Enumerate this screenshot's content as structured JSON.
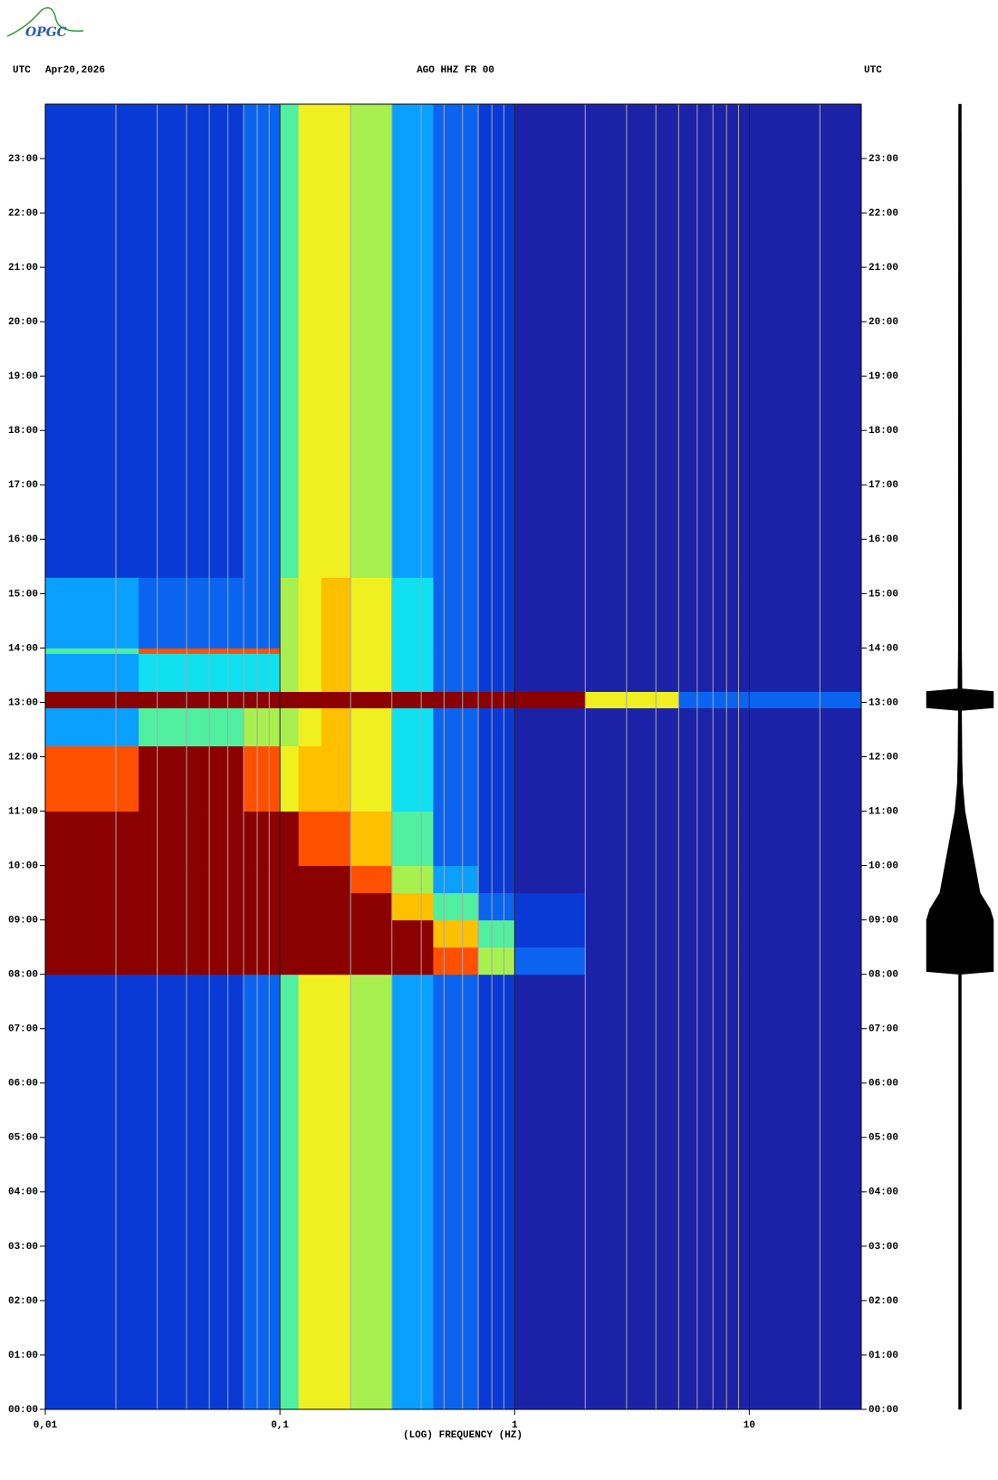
{
  "logo": "OPGC",
  "chart_data": {
    "type": "spectrogram",
    "header_left_zone": "UTC",
    "header_date": "Apr20,2026",
    "title": "AGO HHZ FR 00",
    "header_right_zone": "UTC",
    "x_label": "(LOG) FREQUENCY (HZ)",
    "x_log": true,
    "xlim": [
      0.01,
      30
    ],
    "xticks": [
      {
        "value": 0.01,
        "label": "0,01"
      },
      {
        "value": 0.1,
        "label": "0,1"
      },
      1,
      10
    ],
    "xminor": [
      0.02,
      0.03,
      0.04,
      0.05,
      0.06,
      0.07,
      0.08,
      0.09,
      0.2,
      0.3,
      0.4,
      0.5,
      0.6,
      0.7,
      0.8,
      0.9,
      2,
      3,
      4,
      5,
      6,
      7,
      8,
      9,
      20
    ],
    "ylim": [
      0,
      24
    ],
    "yticks": [
      {
        "value": 0,
        "label": "00:00"
      },
      {
        "value": 1,
        "label": "01:00"
      },
      {
        "value": 2,
        "label": "02:00"
      },
      {
        "value": 3,
        "label": "03:00"
      },
      {
        "value": 4,
        "label": "04:00"
      },
      {
        "value": 5,
        "label": "05:00"
      },
      {
        "value": 6,
        "label": "06:00"
      },
      {
        "value": 7,
        "label": "07:00"
      },
      {
        "value": 8,
        "label": "08:00"
      },
      {
        "value": 9,
        "label": "09:00"
      },
      {
        "value": 10,
        "label": "10:00"
      },
      {
        "value": 11,
        "label": "11:00"
      },
      {
        "value": 12,
        "label": "12:00"
      },
      {
        "value": 13,
        "label": "13:00"
      },
      {
        "value": 14,
        "label": "14:00"
      },
      {
        "value": 15,
        "label": "15:00"
      },
      {
        "value": 16,
        "label": "16:00"
      },
      {
        "value": 17,
        "label": "17:00"
      },
      {
        "value": 18,
        "label": "18:00"
      },
      {
        "value": 19,
        "label": "19:00"
      },
      {
        "value": 20,
        "label": "20:00"
      },
      {
        "value": 21,
        "label": "21:00"
      },
      {
        "value": 22,
        "label": "22:00"
      },
      {
        "value": 23,
        "label": "23:00"
      }
    ],
    "colors": [
      "#1c22a8",
      "#0a3ad6",
      "#0a64f0",
      "#0aa0ff",
      "#10e0f0",
      "#50f0a0",
      "#a8f050",
      "#f0f020",
      "#ffc000",
      "#ff5000",
      "#8b0000"
    ],
    "freq_edges": [
      0.01,
      0.025,
      0.05,
      0.07,
      0.1,
      0.12,
      0.15,
      0.2,
      0.3,
      0.45,
      0.7,
      1,
      2,
      5,
      30
    ],
    "time_edges": [
      0,
      8,
      8.5,
      9,
      9.5,
      10,
      11,
      12.2,
      12.9,
      13.2,
      13.9,
      14,
      15.3,
      24
    ],
    "z": [
      [
        1,
        1,
        1,
        2,
        5,
        7,
        7,
        6,
        3,
        2,
        1,
        0,
        0,
        0
      ],
      [
        10,
        10,
        10,
        10,
        10,
        10,
        10,
        10,
        10,
        9,
        6,
        2,
        0,
        0
      ],
      [
        10,
        10,
        10,
        10,
        10,
        10,
        10,
        10,
        10,
        8,
        5,
        1,
        0,
        0
      ],
      [
        10,
        10,
        10,
        10,
        10,
        10,
        10,
        10,
        8,
        5,
        2,
        1,
        0,
        0
      ],
      [
        10,
        10,
        10,
        10,
        10,
        10,
        10,
        9,
        6,
        3,
        1,
        0,
        0,
        0
      ],
      [
        10,
        10,
        10,
        10,
        10,
        9,
        9,
        8,
        5,
        2,
        1,
        0,
        0,
        0
      ],
      [
        9,
        10,
        10,
        9,
        7,
        8,
        8,
        7,
        4,
        2,
        1,
        0,
        0,
        0
      ],
      [
        3,
        5,
        5,
        6,
        6,
        7,
        8,
        7,
        4,
        2,
        1,
        0,
        0,
        0
      ],
      [
        10,
        10,
        10,
        10,
        10,
        10,
        10,
        10,
        10,
        10,
        10,
        10,
        7,
        2
      ],
      [
        3,
        4,
        4,
        4,
        6,
        7,
        8,
        7,
        4,
        2,
        1,
        0,
        0,
        0
      ],
      [
        5,
        9,
        9,
        9,
        6,
        7,
        8,
        7,
        4,
        2,
        1,
        0,
        0,
        0
      ],
      [
        3,
        2,
        2,
        2,
        6,
        7,
        8,
        7,
        4,
        2,
        1,
        0,
        0,
        0
      ],
      [
        1,
        1,
        1,
        2,
        5,
        7,
        7,
        6,
        3,
        2,
        1,
        0,
        0,
        0
      ]
    ],
    "trace": {
      "t": [
        0,
        8.0,
        8.05,
        8.5,
        9.0,
        9.2,
        9.5,
        10.0,
        10.5,
        11.0,
        11.5,
        12.0,
        12.85,
        12.9,
        13.2,
        13.25,
        14,
        24
      ],
      "amplitude": [
        0.04,
        0.04,
        1,
        1,
        1,
        0.9,
        0.6,
        0.45,
        0.3,
        0.15,
        0.08,
        0.06,
        0.05,
        1,
        1,
        0.06,
        0.05,
        0.04
      ]
    }
  }
}
